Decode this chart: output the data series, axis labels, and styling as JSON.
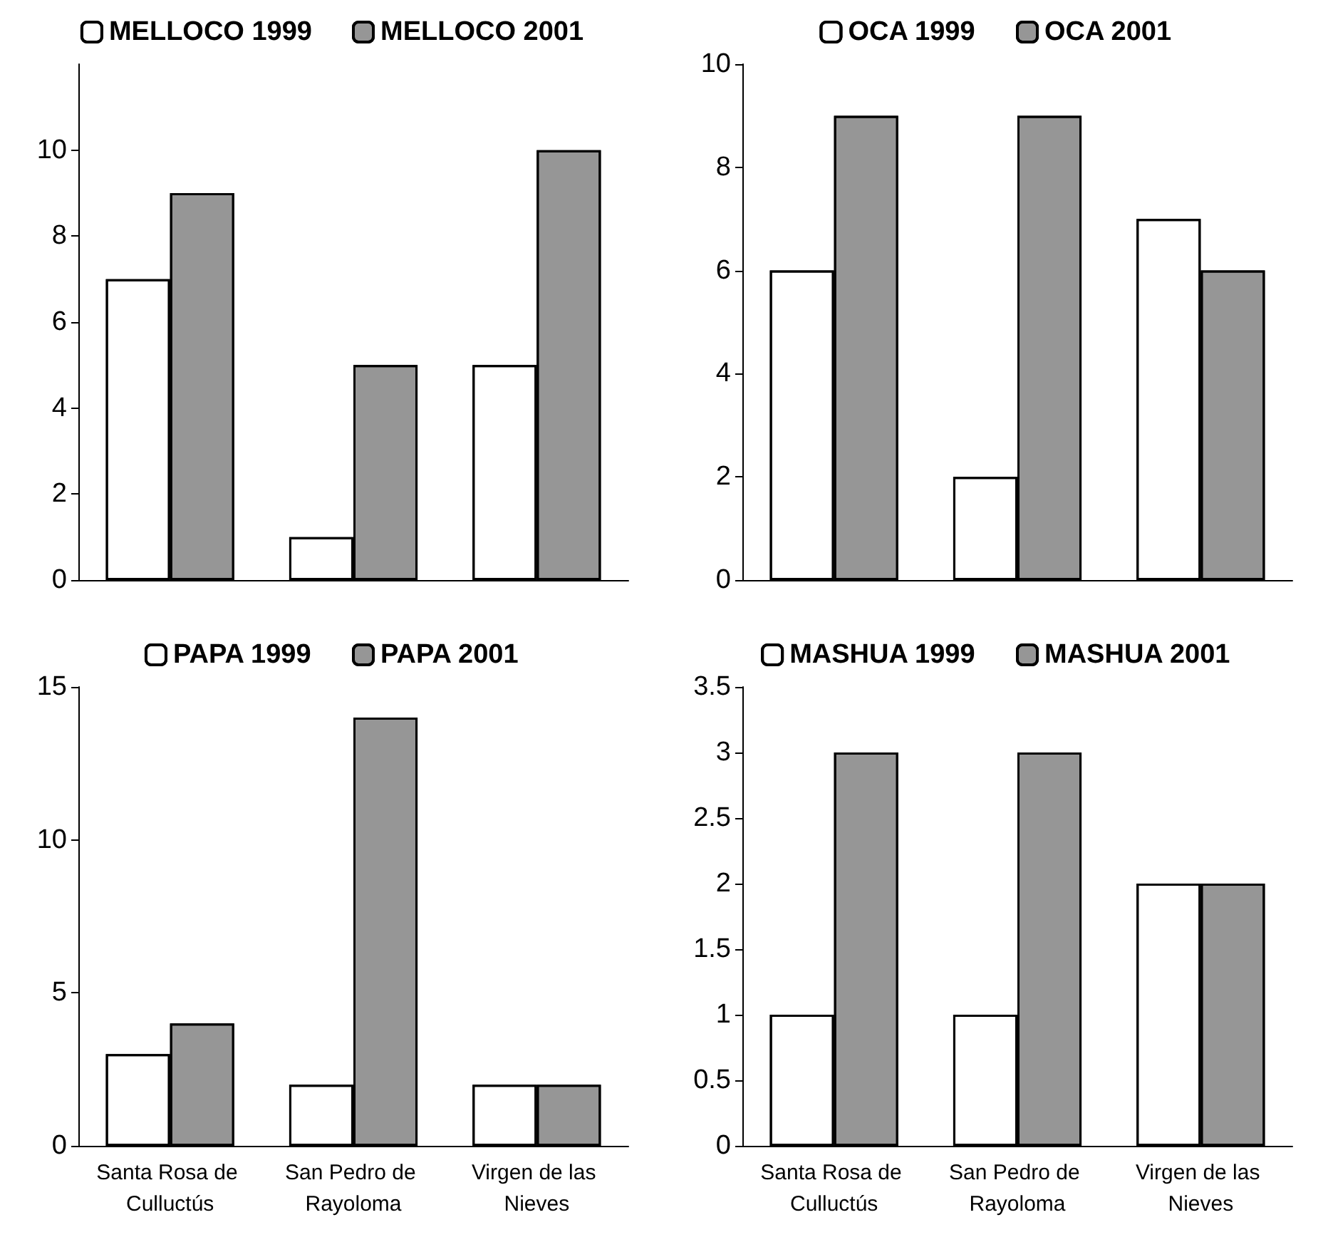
{
  "chart_data": [
    {
      "type": "bar",
      "categories": [
        "Santa Rosa de Culluctús",
        "San Pedro de Rayoloma",
        "Virgen de las Nieves"
      ],
      "series": [
        {
          "name": "MELLOCO 1999",
          "color": "#ffffff",
          "values": [
            7,
            1,
            5
          ]
        },
        {
          "name": "MELLOCO 2001",
          "color": "#969696",
          "values": [
            9,
            5,
            10
          ]
        }
      ],
      "ylim": [
        0,
        12
      ],
      "yticks": [
        0,
        2,
        4,
        6,
        8,
        10
      ],
      "legend": "top",
      "tick_labels": "y",
      "grid": false
    },
    {
      "type": "bar",
      "categories": [
        "Santa Rosa de Culluctús",
        "San Pedro de Rayoloma",
        "Virgen de las Nieves"
      ],
      "series": [
        {
          "name": "OCA 1999",
          "color": "#ffffff",
          "values": [
            6,
            2,
            7
          ]
        },
        {
          "name": "OCA 2001",
          "color": "#969696",
          "values": [
            9,
            9,
            6
          ]
        }
      ],
      "ylim": [
        0,
        10
      ],
      "yticks": [
        0,
        2,
        4,
        6,
        8,
        10
      ],
      "legend": "top",
      "tick_labels": "y",
      "grid": false
    },
    {
      "type": "bar",
      "categories": [
        "Santa Rosa de Culluctús",
        "San Pedro de Rayoloma",
        "Virgen de las Nieves"
      ],
      "series": [
        {
          "name": "PAPA 1999",
          "color": "#ffffff",
          "values": [
            3,
            2,
            2
          ]
        },
        {
          "name": "PAPA 2001",
          "color": "#969696",
          "values": [
            4,
            14,
            2
          ]
        }
      ],
      "ylim": [
        0,
        15
      ],
      "yticks": [
        0,
        5,
        10,
        15
      ],
      "legend": "top",
      "grid": false
    },
    {
      "type": "bar",
      "categories": [
        "Santa Rosa de Culluctús",
        "San Pedro de Rayoloma",
        "Virgen de las Nieves"
      ],
      "series": [
        {
          "name": "MASHUA 1999",
          "color": "#ffffff",
          "values": [
            1,
            1,
            2
          ]
        },
        {
          "name": "MASHUA 2001",
          "color": "#969696",
          "values": [
            3,
            3,
            2
          ]
        }
      ],
      "ylim": [
        0,
        3.5
      ],
      "yticks": [
        0,
        0.5,
        1,
        1.5,
        2,
        2.5,
        3,
        3.5
      ],
      "legend": "top",
      "grid": false
    }
  ]
}
